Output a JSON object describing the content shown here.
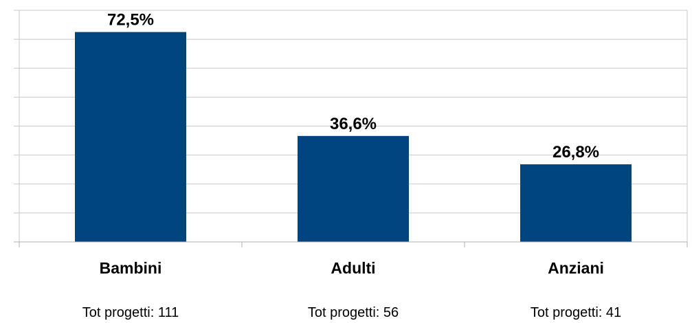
{
  "chart_data": {
    "type": "bar",
    "categories": [
      "Bambini",
      "Adulti",
      "Anziani"
    ],
    "values": [
      72.5,
      36.6,
      26.8
    ],
    "value_labels": [
      "72,5%",
      "36,6%",
      "26,8%"
    ],
    "category_notes": [
      "Tot progetti: 111",
      "Tot progetti: 56",
      "Tot progetti: 41"
    ],
    "title": "",
    "xlabel": "",
    "ylabel": "",
    "ylim": [
      0,
      80
    ],
    "grid": true,
    "legend": "none",
    "bar_color": "#00457F"
  }
}
